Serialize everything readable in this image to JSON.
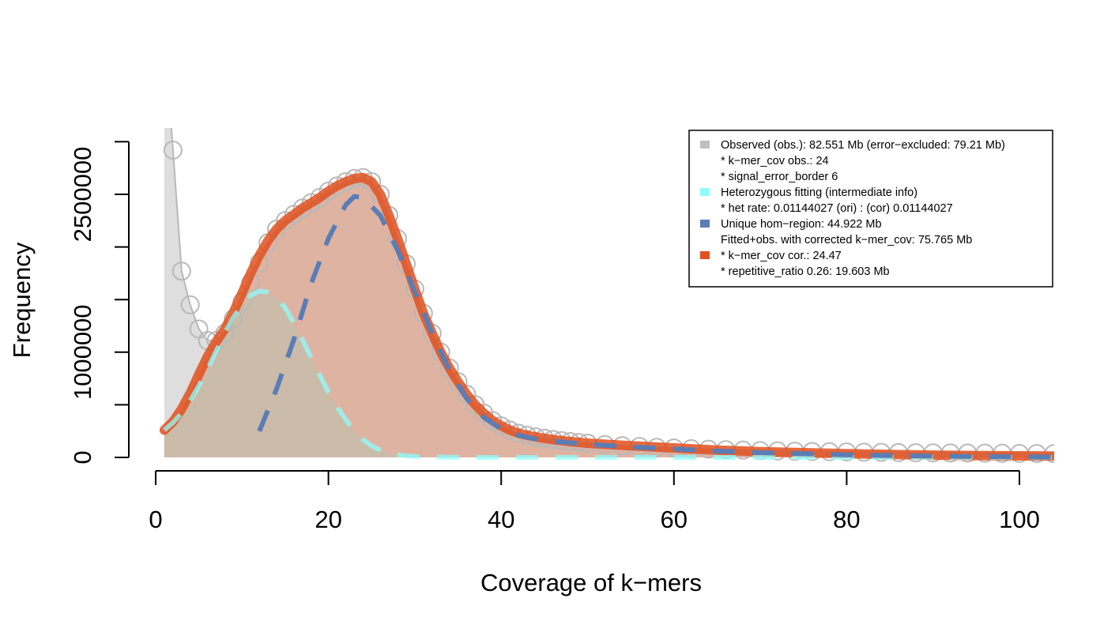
{
  "chart_data": {
    "type": "line",
    "xlabel": "Coverage of k−mers",
    "ylabel": "Frequency",
    "xlim": [
      0,
      104
    ],
    "ylim": [
      0,
      2800000
    ],
    "x_ticks": [
      0,
      20,
      40,
      60,
      80,
      100
    ],
    "x_tick_labels": [
      "0",
      "20",
      "40",
      "60",
      "80",
      "100"
    ],
    "y_ticks": [
      0,
      500000,
      1000000,
      1500000,
      2000000,
      2500000,
      3000000
    ],
    "y_tick_labels": [
      "0",
      "1000000",
      "2500000"
    ],
    "y_tick_label_values": [
      0,
      1000000,
      2500000
    ],
    "grid": false,
    "legend_position": "top-right",
    "legend": [
      {
        "text": "Observed (obs.): 82.551 Mb (error−excluded: 79.21 Mb)",
        "color": "#bfbfbf"
      },
      {
        "text": "* k−mer_cov obs.: 24",
        "color": ""
      },
      {
        "text": "* signal_error_border 6",
        "color": ""
      },
      {
        "text": "Heterozygous fitting (intermediate info)",
        "color": "#8ffcfc"
      },
      {
        "text": "* het rate: 0.01144027 (ori) : (cor) 0.01144027",
        "color": ""
      },
      {
        "text": "Unique hom−region: 44.922 Mb",
        "color": "#5a7db5"
      },
      {
        "text": "Fitted+obs. with corrected k−mer_cov: 75.765 Mb",
        "color": ""
      },
      {
        "text": "* k−mer_cov cor.: 24.47",
        "color": "#e1501e"
      },
      {
        "text": "* repetitive_ratio 0.26: 19.603 Mb",
        "color": ""
      }
    ],
    "series": [
      {
        "name": "Observed (obs.)",
        "style": "points",
        "color": "#bfbfbf",
        "x": [
          1,
          2,
          3,
          4,
          5,
          6,
          7,
          8,
          9,
          10,
          11,
          12,
          13,
          14,
          15,
          16,
          17,
          18,
          19,
          20,
          21,
          22,
          23,
          24,
          25,
          26,
          27,
          28,
          29,
          30,
          31,
          32,
          33,
          34,
          35,
          36,
          37,
          38,
          39,
          40,
          41,
          42,
          43,
          44,
          45,
          46,
          47,
          48,
          49,
          50,
          52,
          54,
          56,
          58,
          60,
          62,
          64,
          66,
          68,
          70,
          72,
          74,
          76,
          78,
          80,
          82,
          84,
          86,
          88,
          90,
          92,
          94,
          96,
          98,
          100,
          102,
          104
        ],
        "y": [
          4000000,
          2920000,
          1770000,
          1450000,
          1220000,
          1110000,
          1110000,
          1180000,
          1320000,
          1480000,
          1660000,
          1850000,
          2040000,
          2170000,
          2250000,
          2310000,
          2370000,
          2420000,
          2470000,
          2530000,
          2580000,
          2620000,
          2650000,
          2660000,
          2620000,
          2500000,
          2300000,
          2080000,
          1840000,
          1600000,
          1370000,
          1180000,
          1000000,
          850000,
          720000,
          600000,
          500000,
          420000,
          350000,
          300000,
          260000,
          230000,
          210000,
          195000,
          182000,
          170000,
          160000,
          150000,
          142000,
          135000,
          122000,
          112000,
          104000,
          96000,
          89000,
          83000,
          78000,
          73000,
          69000,
          65000,
          62000,
          59000,
          56000,
          54000,
          52000,
          50000,
          48000,
          46000,
          44000,
          43000,
          42000,
          41000,
          40000,
          39000,
          38000,
          37000,
          36000
        ]
      },
      {
        "name": "Heterozygous fitting",
        "style": "dashed",
        "color": "#8ffcfc",
        "x": [
          1,
          2,
          3,
          4,
          5,
          6,
          7,
          8,
          9,
          10,
          11,
          12,
          13,
          14,
          15,
          16,
          17,
          18,
          19,
          20,
          21,
          22,
          23,
          24,
          25,
          26,
          27,
          28,
          29,
          30,
          32,
          34,
          36,
          40,
          50,
          60,
          70,
          80,
          90,
          100,
          104
        ],
        "y": [
          260000,
          330000,
          420000,
          540000,
          680000,
          840000,
          1010000,
          1180000,
          1330000,
          1450000,
          1540000,
          1580000,
          1570000,
          1520000,
          1420000,
          1280000,
          1120000,
          950000,
          780000,
          620000,
          480000,
          360000,
          250000,
          170000,
          110000,
          70000,
          40000,
          25000,
          15000,
          8000,
          4000,
          2000,
          1000,
          0,
          0,
          0,
          0,
          0,
          0,
          0,
          0
        ]
      },
      {
        "name": "Unique hom−region",
        "style": "dashed",
        "color": "#5a7db5",
        "x": [
          12,
          14,
          16,
          18,
          20,
          22,
          23,
          24,
          26,
          28,
          30,
          32,
          34,
          36,
          38,
          40,
          42,
          44,
          46,
          48,
          50,
          55,
          60,
          65,
          70,
          75,
          80,
          85,
          90,
          95,
          100,
          104
        ],
        "y": [
          250000,
          650000,
          1120000,
          1650000,
          2080000,
          2400000,
          2480000,
          2470000,
          2300000,
          1970000,
          1580000,
          1180000,
          830000,
          560000,
          380000,
          270000,
          210000,
          175000,
          155000,
          140000,
          125000,
          100000,
          80000,
          60000,
          45000,
          35000,
          25000,
          18000,
          12000,
          8000,
          5000,
          3000
        ]
      },
      {
        "name": "Fitted+obs. with corrected k−mer_cov",
        "style": "line",
        "color": "#e1501e",
        "x": [
          1,
          2,
          3,
          4,
          5,
          6,
          7,
          8,
          9,
          10,
          11,
          12,
          13,
          14,
          15,
          16,
          17,
          18,
          19,
          20,
          21,
          22,
          23,
          24,
          25,
          26,
          27,
          28,
          29,
          30,
          31,
          32,
          33,
          34,
          35,
          36,
          37,
          38,
          39,
          40,
          41,
          42,
          43,
          44,
          45,
          46,
          47,
          48,
          50,
          55,
          60,
          65,
          70,
          75,
          80,
          85,
          90,
          95,
          100,
          104
        ],
        "y": [
          260000,
          340000,
          460000,
          610000,
          790000,
          960000,
          1100000,
          1220000,
          1380000,
          1560000,
          1750000,
          1920000,
          2060000,
          2170000,
          2250000,
          2310000,
          2370000,
          2420000,
          2470000,
          2530000,
          2580000,
          2620000,
          2650000,
          2660000,
          2620000,
          2500000,
          2300000,
          2080000,
          1840000,
          1600000,
          1370000,
          1180000,
          1000000,
          850000,
          720000,
          600000,
          500000,
          420000,
          350000,
          300000,
          260000,
          230000,
          210000,
          195000,
          182000,
          170000,
          160000,
          150000,
          135000,
          110000,
          90000,
          70000,
          55000,
          45000,
          35000,
          28000,
          22000,
          18000,
          15000,
          13000
        ]
      }
    ]
  }
}
